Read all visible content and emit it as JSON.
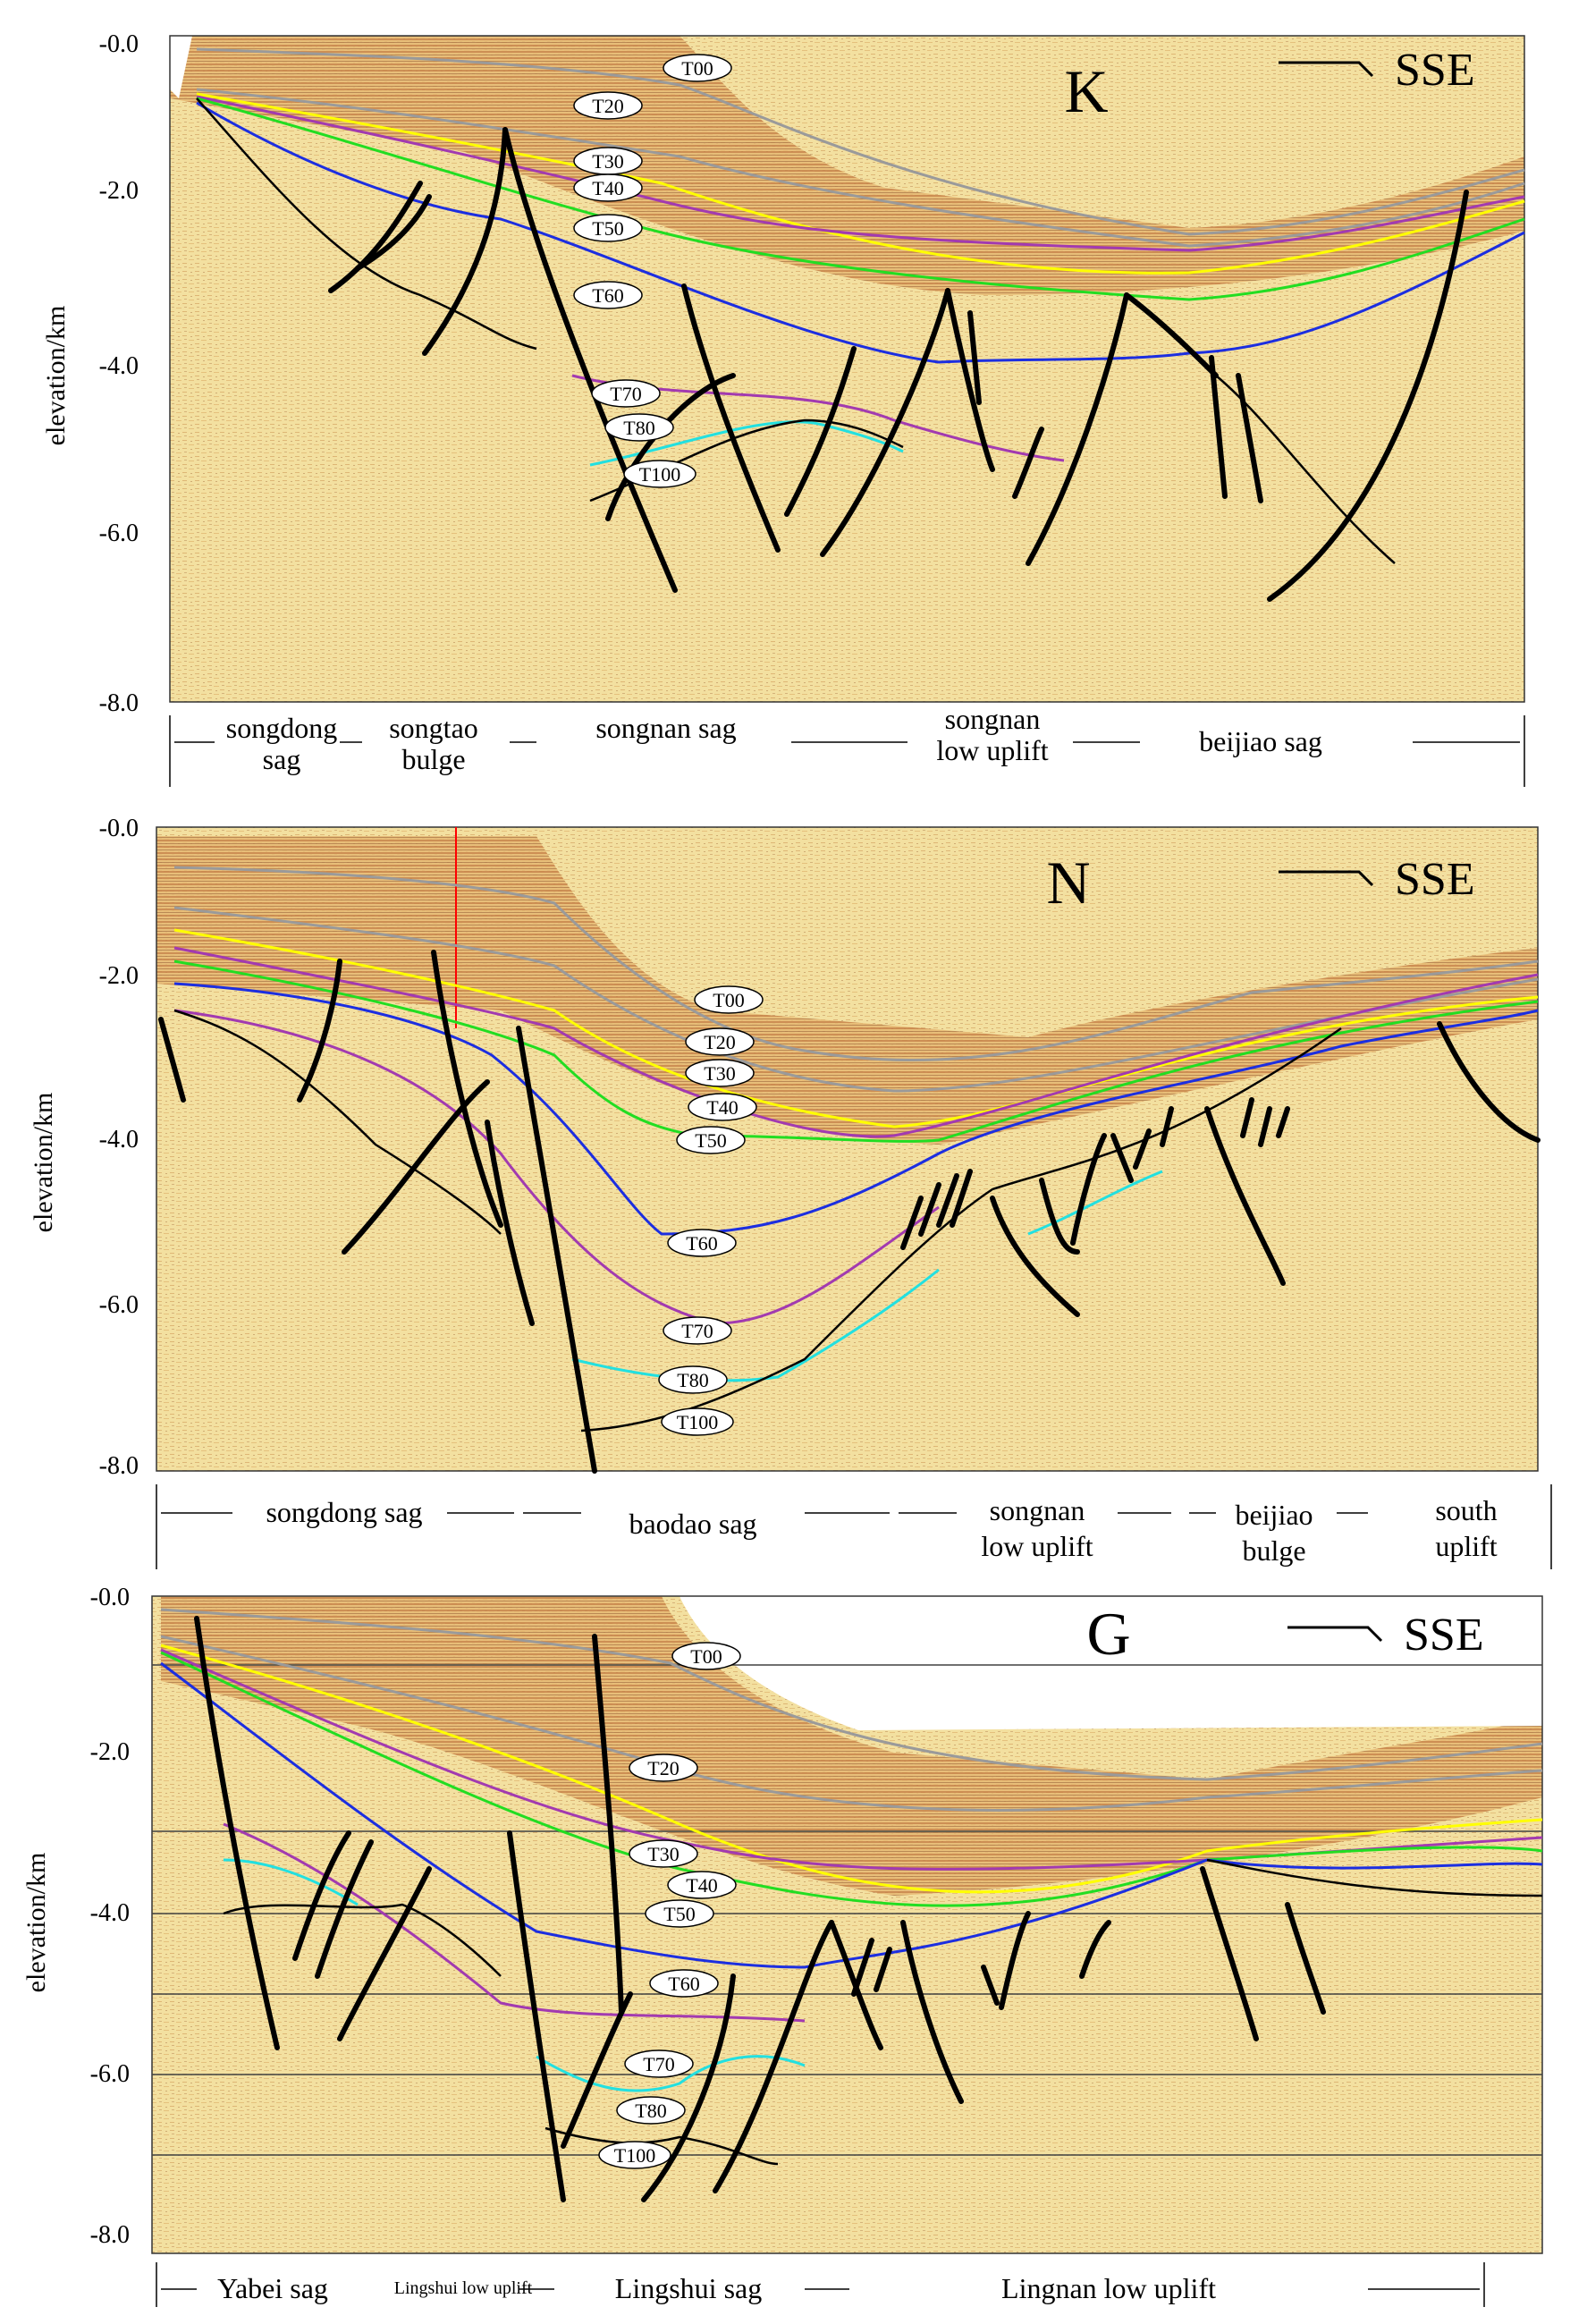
{
  "colors": {
    "seismic_bg": "#f3e0a0",
    "seismic_band": "#cf8f48",
    "seismic_dark": "#8b4a22",
    "horizon_T00": "#9a9a9a",
    "horizon_T20": "#9a9a9a",
    "horizon_T30": "#ffff00",
    "horizon_T40": "#a23ab0",
    "horizon_T50": "#22dd22",
    "horizon_T60": "#1c2ee0",
    "horizon_T70": "#a23ab0",
    "horizon_T80": "#22e0e0",
    "horizon_T100": "#000000",
    "fault": "#000000",
    "depth_gridline": "#404040"
  },
  "yaxis": {
    "title": "elevation/km",
    "ticks": [
      "-0.0",
      "-2.0",
      "-4.0",
      "-6.0",
      "-8.0"
    ]
  },
  "panels": [
    {
      "id": "K",
      "label": "K",
      "direction": "SSE",
      "horizon_labels": [
        "T00",
        "T20",
        "T30",
        "T40",
        "T50",
        "T60",
        "T70",
        "T80",
        "T100"
      ],
      "zones": [
        {
          "name": "songdong sag",
          "lines": [
            "songdong",
            "sag"
          ]
        },
        {
          "name": "songtao bulge",
          "lines": [
            "songtao",
            "bulge"
          ]
        },
        {
          "name": "songnan sag",
          "lines": [
            "songnan sag"
          ]
        },
        {
          "name": "songnan low uplift",
          "lines": [
            "songnan",
            "low uplift"
          ]
        },
        {
          "name": "beijiao sag",
          "lines": [
            "beijiao sag"
          ]
        }
      ]
    },
    {
      "id": "N",
      "label": "N",
      "direction": "SSE",
      "horizon_labels": [
        "T00",
        "T20",
        "T30",
        "T40",
        "T50",
        "T60",
        "T70",
        "T80",
        "T100"
      ],
      "zones": [
        {
          "name": "songdong sag",
          "lines": [
            "songdong sag"
          ]
        },
        {
          "name": "baodao sag",
          "lines": [
            "baodao sag"
          ]
        },
        {
          "name": "songnan low uplift",
          "lines": [
            "songnan",
            "low uplift"
          ]
        },
        {
          "name": "beijiao bulge",
          "lines": [
            "beijiao",
            "bulge"
          ]
        },
        {
          "name": "south uplift",
          "lines": [
            "south",
            "uplift"
          ]
        }
      ]
    },
    {
      "id": "G",
      "label": "G",
      "direction": "SSE",
      "horizon_labels": [
        "T00",
        "T20",
        "T30",
        "T40",
        "T50",
        "T60",
        "T70",
        "T80",
        "T100"
      ],
      "zones": [
        {
          "name": "Yabei sag",
          "lines": [
            "Yabei sag"
          ]
        },
        {
          "name": "Lingshui low uplift",
          "lines": [
            "Lingshui low uplift"
          ]
        },
        {
          "name": "Lingshui sag",
          "lines": [
            "Lingshui sag"
          ]
        },
        {
          "name": "Lingnan low uplift",
          "lines": [
            "Lingnan low uplift"
          ]
        }
      ]
    }
  ]
}
